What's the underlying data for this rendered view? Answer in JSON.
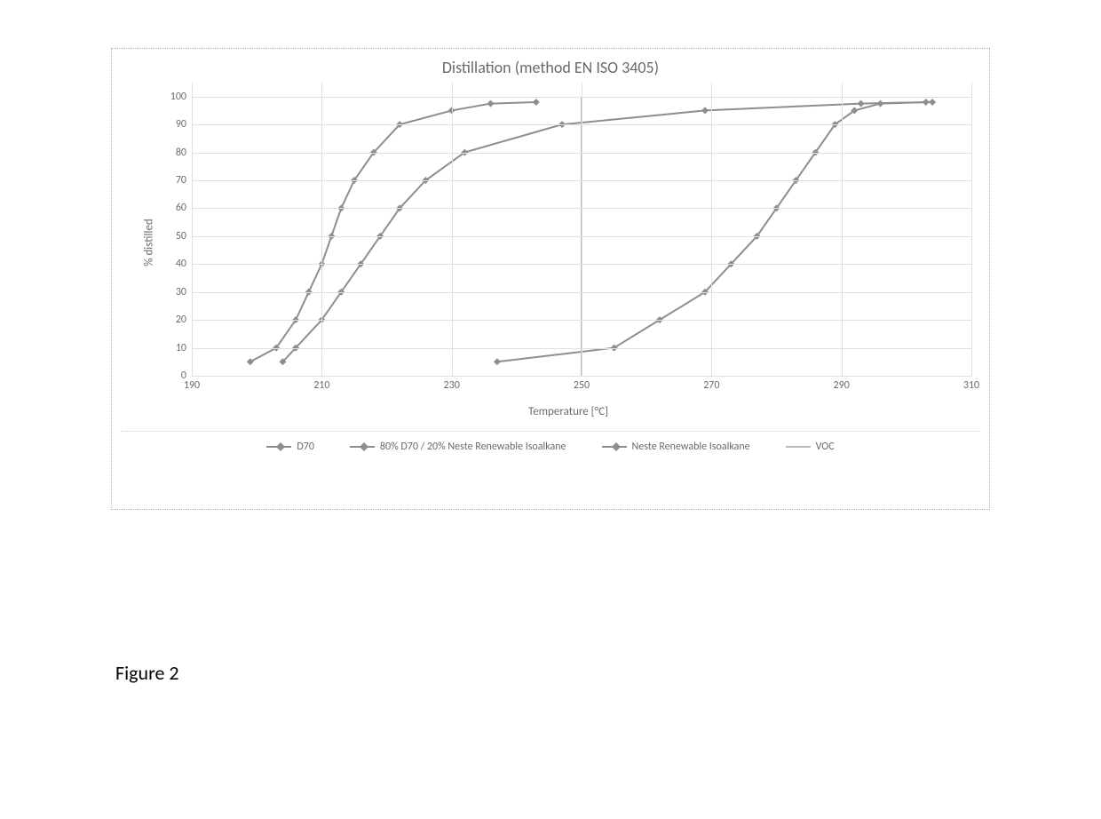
{
  "chart": {
    "type": "line",
    "title": "Distillation (method EN ISO 3405)",
    "title_fontsize": 18,
    "xlabel": "Temperature [°C]",
    "ylabel": "% distilled",
    "label_fontsize": 13,
    "tick_fontsize": 12,
    "background_color": "#ffffff",
    "border_color": "#b0b0b0",
    "grid_color": "#e0e0e0",
    "text_color": "#6a6a6a",
    "xlim": [
      190,
      310
    ],
    "xtick_step": 20,
    "ylim": [
      0,
      105
    ],
    "yticks": [
      0,
      10,
      20,
      30,
      40,
      50,
      60,
      70,
      80,
      90,
      100
    ],
    "marker_shape": "diamond",
    "marker_size": 8,
    "line_width": 2,
    "series": [
      {
        "name": "D70",
        "color": "#8e8e8e",
        "x": [
          199,
          203,
          206,
          208,
          210,
          211.5,
          213,
          215,
          218,
          222,
          230,
          236,
          243
        ],
        "y": [
          5,
          10,
          20,
          30,
          40,
          50,
          60,
          70,
          80,
          90,
          95,
          97.5,
          98
        ]
      },
      {
        "name": "80% D70 / 20% Neste Renewable Isoalkane",
        "color": "#8e8e8e",
        "x": [
          204,
          206,
          210,
          213,
          216,
          219,
          222,
          226,
          232,
          247,
          269,
          293,
          303
        ],
        "y": [
          5,
          10,
          20,
          30,
          40,
          50,
          60,
          70,
          80,
          90,
          95,
          97.5,
          98
        ]
      },
      {
        "name": "Neste Renewable Isoalkane",
        "color": "#8e8e8e",
        "x": [
          237,
          255,
          262,
          269,
          273,
          277,
          280,
          283,
          286,
          289,
          292,
          296,
          304
        ],
        "y": [
          5,
          10,
          20,
          30,
          40,
          50,
          60,
          70,
          80,
          90,
          95,
          97.5,
          98
        ]
      },
      {
        "name": "VOC",
        "color": "#b8b8b8",
        "x": [
          250,
          250
        ],
        "y": [
          0,
          100
        ]
      }
    ]
  },
  "caption": "Figure 2"
}
